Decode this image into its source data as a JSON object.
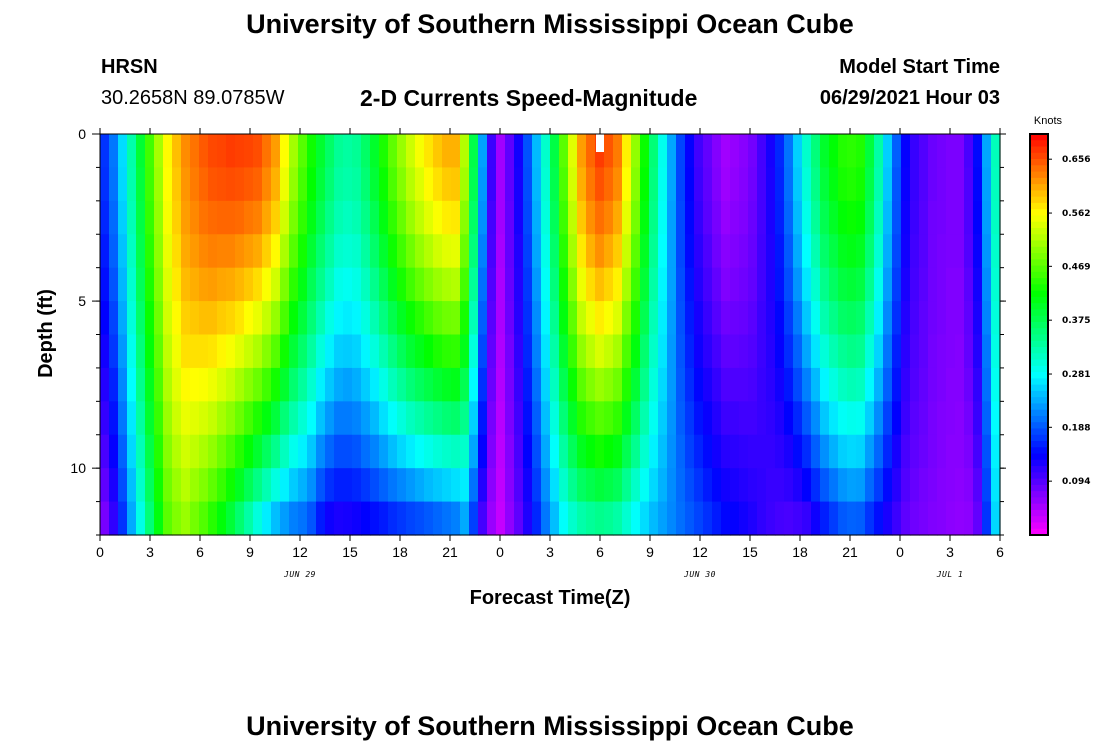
{
  "header": {
    "title": "University of Southern Mississippi Ocean Cube",
    "station": "HRSN",
    "coords": "30.2658N  89.0785W",
    "model_label": "Model Start Time",
    "model_time": "06/29/2021 Hour 03"
  },
  "footer": {
    "title": "University of Southern Mississippi Ocean Cube"
  },
  "chart_data": {
    "type": "heatmap",
    "title": "2-D Currents Speed-Magnitude",
    "xlabel": "Forecast Time(Z)",
    "ylabel": "Depth (ft)",
    "x_hours_range": [
      0,
      54
    ],
    "y_range": [
      0,
      12
    ],
    "x_ticks": [
      {
        "hour": 0,
        "label": "0"
      },
      {
        "hour": 3,
        "label": "3"
      },
      {
        "hour": 6,
        "label": "6"
      },
      {
        "hour": 9,
        "label": "9"
      },
      {
        "hour": 12,
        "label": "12"
      },
      {
        "hour": 15,
        "label": "15"
      },
      {
        "hour": 18,
        "label": "18"
      },
      {
        "hour": 21,
        "label": "21"
      },
      {
        "hour": 24,
        "label": "0"
      },
      {
        "hour": 27,
        "label": "3"
      },
      {
        "hour": 30,
        "label": "6"
      },
      {
        "hour": 33,
        "label": "9"
      },
      {
        "hour": 36,
        "label": "12"
      },
      {
        "hour": 39,
        "label": "15"
      },
      {
        "hour": 42,
        "label": "18"
      },
      {
        "hour": 45,
        "label": "21"
      },
      {
        "hour": 48,
        "label": "0"
      },
      {
        "hour": 51,
        "label": "3"
      },
      {
        "hour": 54,
        "label": "6"
      }
    ],
    "y_ticks": [
      {
        "depth": 0,
        "label": "0"
      },
      {
        "depth": 5,
        "label": "5"
      },
      {
        "depth": 10,
        "label": "10"
      }
    ],
    "date_labels": [
      {
        "hour": 12,
        "label": "JUN 29"
      },
      {
        "hour": 36,
        "label": "JUN 30"
      },
      {
        "hour": 51,
        "label": "JUL 1"
      }
    ],
    "colorbar": {
      "unit": "Knots",
      "min": 0.0,
      "max": 0.7,
      "ticks": [
        "0.656",
        "0.562",
        "0.469",
        "0.375",
        "0.281",
        "0.188",
        "0.094"
      ]
    },
    "current_time_marker_hour": 30,
    "profile_columns": [
      {
        "hour": 0.0,
        "surface": 0.15,
        "bottom": 0.05
      },
      {
        "hour": 1.0,
        "surface": 0.22,
        "bottom": 0.12
      },
      {
        "hour": 2.0,
        "surface": 0.34,
        "bottom": 0.24
      },
      {
        "hour": 3.0,
        "surface": 0.46,
        "bottom": 0.35
      },
      {
        "hour": 4.0,
        "surface": 0.56,
        "bottom": 0.46
      },
      {
        "hour": 5.0,
        "surface": 0.62,
        "bottom": 0.5
      },
      {
        "hour": 6.5,
        "surface": 0.66,
        "bottom": 0.44
      },
      {
        "hour": 8.0,
        "surface": 0.67,
        "bottom": 0.36
      },
      {
        "hour": 9.5,
        "surface": 0.66,
        "bottom": 0.27
      },
      {
        "hour": 10.5,
        "surface": 0.62,
        "bottom": 0.22
      },
      {
        "hour": 11.5,
        "surface": 0.52,
        "bottom": 0.19
      },
      {
        "hour": 12.5,
        "surface": 0.44,
        "bottom": 0.18
      },
      {
        "hour": 13.5,
        "surface": 0.38,
        "bottom": 0.12
      },
      {
        "hour": 14.5,
        "surface": 0.33,
        "bottom": 0.11
      },
      {
        "hour": 15.5,
        "surface": 0.34,
        "bottom": 0.12
      },
      {
        "hour": 16.5,
        "surface": 0.4,
        "bottom": 0.13
      },
      {
        "hour": 17.5,
        "surface": 0.47,
        "bottom": 0.14
      },
      {
        "hour": 18.5,
        "surface": 0.53,
        "bottom": 0.15
      },
      {
        "hour": 19.5,
        "surface": 0.57,
        "bottom": 0.16
      },
      {
        "hour": 20.5,
        "surface": 0.6,
        "bottom": 0.17
      },
      {
        "hour": 21.3,
        "surface": 0.61,
        "bottom": 0.18
      },
      {
        "hour": 22.0,
        "surface": 0.5,
        "bottom": 0.22
      },
      {
        "hour": 22.7,
        "surface": 0.3,
        "bottom": 0.12
      },
      {
        "hour": 23.3,
        "surface": 0.13,
        "bottom": 0.06
      },
      {
        "hour": 24.0,
        "surface": 0.05,
        "bottom": 0.03
      },
      {
        "hour": 25.0,
        "surface": 0.12,
        "bottom": 0.08
      },
      {
        "hour": 26.0,
        "surface": 0.22,
        "bottom": 0.14
      },
      {
        "hour": 27.0,
        "surface": 0.34,
        "bottom": 0.22
      },
      {
        "hour": 28.0,
        "surface": 0.5,
        "bottom": 0.28
      },
      {
        "hour": 29.0,
        "surface": 0.63,
        "bottom": 0.31
      },
      {
        "hour": 30.0,
        "surface": 0.67,
        "bottom": 0.32
      },
      {
        "hour": 31.0,
        "surface": 0.64,
        "bottom": 0.31
      },
      {
        "hour": 32.0,
        "surface": 0.52,
        "bottom": 0.27
      },
      {
        "hour": 33.0,
        "surface": 0.38,
        "bottom": 0.24
      },
      {
        "hour": 34.0,
        "surface": 0.26,
        "bottom": 0.22
      },
      {
        "hour": 35.0,
        "surface": 0.16,
        "bottom": 0.2
      },
      {
        "hour": 36.0,
        "surface": 0.1,
        "bottom": 0.18
      },
      {
        "hour": 37.5,
        "surface": 0.05,
        "bottom": 0.15
      },
      {
        "hour": 39.0,
        "surface": 0.07,
        "bottom": 0.13
      },
      {
        "hour": 40.5,
        "surface": 0.14,
        "bottom": 0.1
      },
      {
        "hour": 41.5,
        "surface": 0.22,
        "bottom": 0.09
      },
      {
        "hour": 42.5,
        "surface": 0.32,
        "bottom": 0.1
      },
      {
        "hour": 43.5,
        "surface": 0.4,
        "bottom": 0.14
      },
      {
        "hour": 44.5,
        "surface": 0.44,
        "bottom": 0.17
      },
      {
        "hour": 45.5,
        "surface": 0.45,
        "bottom": 0.18
      },
      {
        "hour": 46.5,
        "surface": 0.36,
        "bottom": 0.14
      },
      {
        "hour": 47.5,
        "surface": 0.22,
        "bottom": 0.11
      },
      {
        "hour": 48.5,
        "surface": 0.12,
        "bottom": 0.08
      },
      {
        "hour": 50.0,
        "surface": 0.08,
        "bottom": 0.07
      },
      {
        "hour": 51.5,
        "surface": 0.07,
        "bottom": 0.06
      },
      {
        "hour": 52.5,
        "surface": 0.12,
        "bottom": 0.06
      },
      {
        "hour": 53.3,
        "surface": 0.25,
        "bottom": 0.18
      },
      {
        "hour": 54.0,
        "surface": 0.36,
        "bottom": 0.3
      }
    ]
  }
}
